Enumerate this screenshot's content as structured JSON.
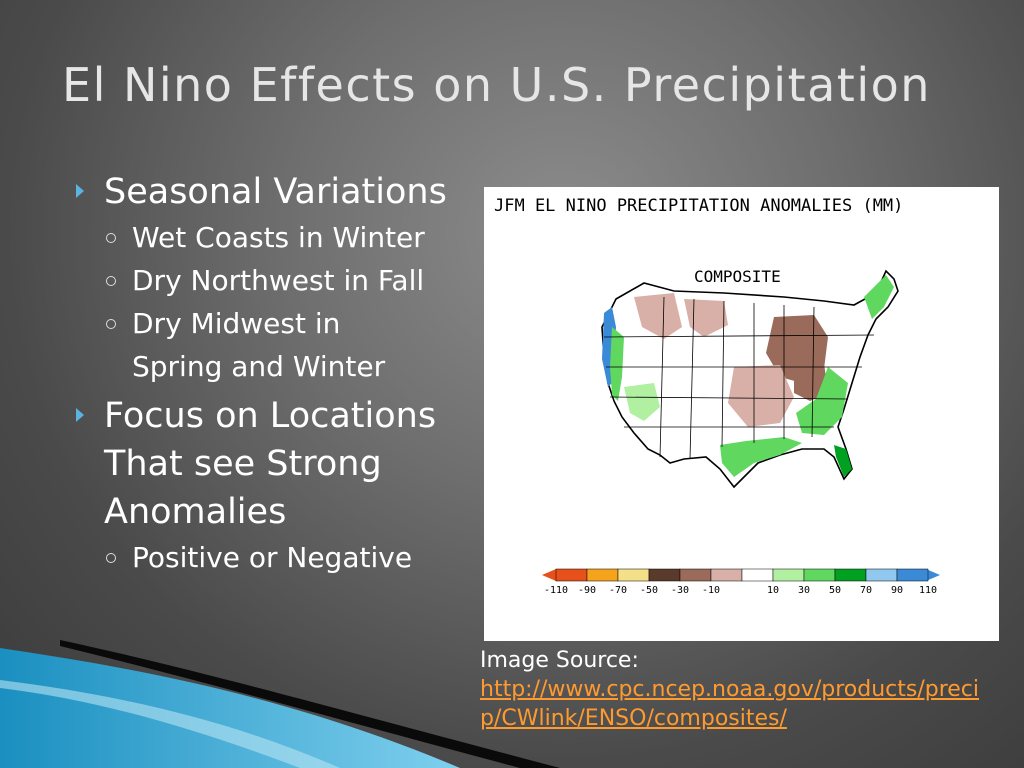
{
  "slide": {
    "title": "El Nino Effects on U.S. Precipitation",
    "bullets": {
      "b1": "Seasonal Variations",
      "b1_sub1": "Wet Coasts in Winter",
      "b1_sub2": "Dry Northwest in Fall",
      "b1_sub3_line1": "Dry Midwest in",
      "b1_sub3_line2": "Spring and Winter",
      "b2_line1": "Focus on Locations",
      "b2_line2": "That see Strong",
      "b2_line3": "Anomalies",
      "b2_sub1": "Positive or Negative"
    },
    "source_label": "Image Source:",
    "source_url": "http://www.cpc.ncep.noaa.gov/products/precip/CWlink/ENSO/composites/"
  },
  "figure": {
    "title": "JFM EL NINO PRECIPITATION ANOMALIES (MM)",
    "subtitle": "COMPOSITE",
    "legend_labels": [
      "-110",
      "-90",
      "-70",
      "-50",
      "-30",
      "-10",
      "10",
      "30",
      "50",
      "70",
      "90",
      "110"
    ],
    "legend_colors": [
      "#e8501a",
      "#f5a31a",
      "#f5e08a",
      "#5a3a2a",
      "#9a6a5a",
      "#d8b0a8",
      "#ffffff",
      "#b0f0a0",
      "#60d860",
      "#00a020",
      "#90c8f0",
      "#3a8ad8"
    ]
  }
}
